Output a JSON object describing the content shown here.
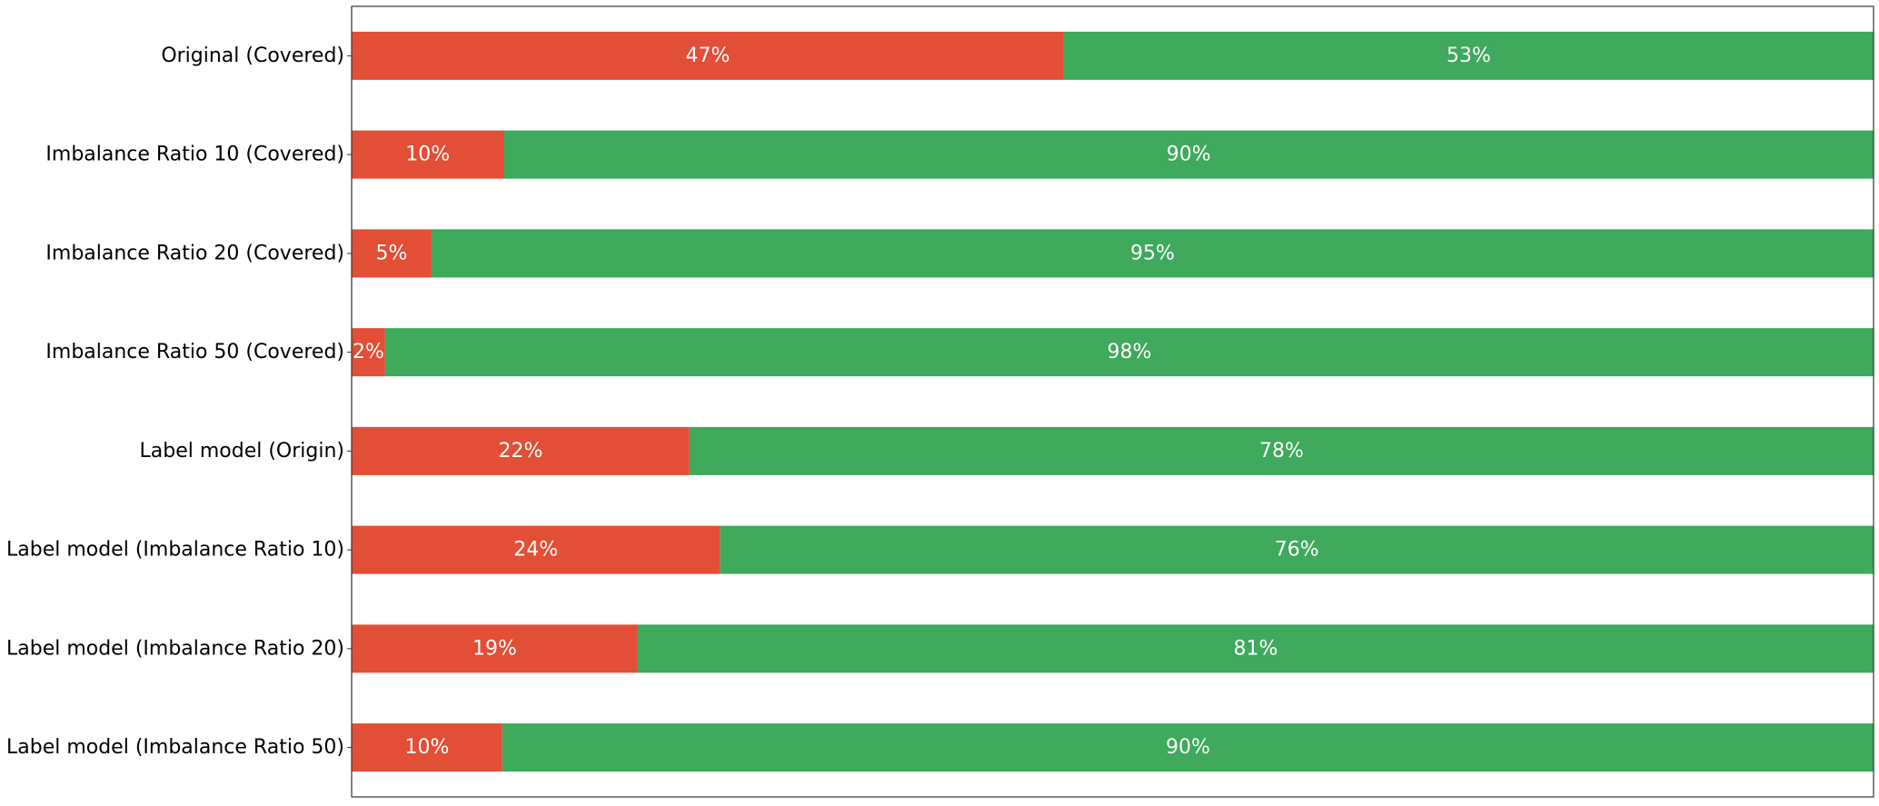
{
  "colors": {
    "negative": "#e34e36",
    "positive": "#3fa95c",
    "frame": "#333333"
  },
  "chart_data": {
    "type": "bar",
    "orientation": "horizontal",
    "stacked": true,
    "normalized": true,
    "title": "",
    "xlabel": "",
    "ylabel": "",
    "xlim": [
      0,
      1
    ],
    "grid": false,
    "legend": "none",
    "categories": [
      "Original (Covered)",
      "Imbalance Ratio 10 (Covered)",
      "Imbalance Ratio 20 (Covered)",
      "Imbalance Ratio 50 (Covered)",
      "Label model (Origin)",
      "Label model (Imbalance Ratio 10)",
      "Label model (Imbalance Ratio 20)",
      "Label model (Imbalance Ratio 50)"
    ],
    "series": [
      {
        "color": "#e34e36",
        "values": [
          0.468,
          0.1,
          0.0525,
          0.022,
          0.222,
          0.242,
          0.188,
          0.099
        ],
        "labels": [
          "47%",
          "10%",
          "5%",
          "2%",
          "22%",
          "24%",
          "19%",
          "10%"
        ]
      },
      {
        "color": "#3fa95c",
        "values": [
          0.532,
          0.9,
          0.9475,
          0.978,
          0.778,
          0.758,
          0.812,
          0.901
        ],
        "labels": [
          "53%",
          "90%",
          "95%",
          "98%",
          "78%",
          "76%",
          "81%",
          "90%"
        ]
      }
    ]
  }
}
